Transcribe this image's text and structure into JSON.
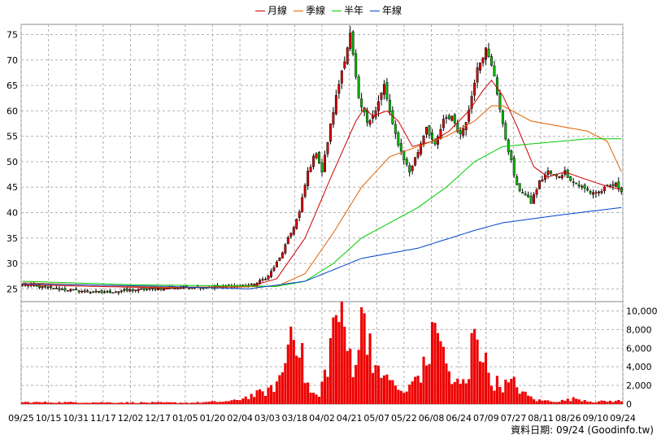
{
  "legend": [
    {
      "label": "月線",
      "color": "#cc0000"
    },
    {
      "label": "季線",
      "color": "#e06000"
    },
    {
      "label": "半年",
      "color": "#00cc00"
    },
    {
      "label": "年線",
      "color": "#0044cc"
    }
  ],
  "source_text": "資料日期: 09/24 (Goodinfo.tw)",
  "chart_data": {
    "type": "candlestick",
    "price_axis": {
      "ticks": [
        25,
        30,
        35,
        40,
        45,
        50,
        55,
        60,
        65,
        70,
        75
      ],
      "ylim": [
        22.5,
        77
      ]
    },
    "volume_axis": {
      "ticks": [
        0,
        2000,
        4000,
        6000,
        8000,
        10000
      ],
      "tick_labels": [
        "0",
        "2,000",
        "4,000",
        "6,000",
        "8,000",
        "10,000"
      ],
      "ylim": [
        0,
        11000
      ]
    },
    "x_tick_labels": [
      "09/25",
      "10/15",
      "10/31",
      "11/17",
      "12/02",
      "12/17",
      "01/05",
      "01/20",
      "02/04",
      "03/03",
      "03/18",
      "04/02",
      "04/21",
      "05/07",
      "05/22",
      "06/08",
      "06/24",
      "07/09",
      "07/27",
      "08/11",
      "08/26",
      "09/10",
      "09/24"
    ],
    "price_keypoints": [
      [
        0,
        25.8
      ],
      [
        9,
        25.2
      ],
      [
        22,
        24.5
      ],
      [
        28,
        24.3
      ],
      [
        45,
        25.0
      ],
      [
        58,
        25.3
      ],
      [
        72,
        25.5
      ],
      [
        82,
        25.8
      ],
      [
        87,
        27.5
      ],
      [
        91,
        31
      ],
      [
        95,
        36
      ],
      [
        98,
        40
      ],
      [
        101,
        48
      ],
      [
        104,
        52
      ],
      [
        106,
        48
      ],
      [
        110,
        60
      ],
      [
        113,
        68
      ],
      [
        116,
        75
      ],
      [
        119,
        62
      ],
      [
        122,
        58
      ],
      [
        125,
        60
      ],
      [
        128,
        65
      ],
      [
        131,
        57
      ],
      [
        134,
        52
      ],
      [
        137,
        48
      ],
      [
        140,
        52
      ],
      [
        143,
        57
      ],
      [
        146,
        53
      ],
      [
        149,
        58
      ],
      [
        152,
        59
      ],
      [
        155,
        55
      ],
      [
        158,
        60
      ],
      [
        161,
        69
      ],
      [
        164,
        72
      ],
      [
        167,
        67
      ],
      [
        170,
        57
      ],
      [
        173,
        50
      ],
      [
        175,
        45
      ],
      [
        177,
        44
      ],
      [
        180,
        42
      ],
      [
        183,
        46
      ],
      [
        186,
        48
      ],
      [
        189,
        47
      ],
      [
        192,
        48
      ],
      [
        195,
        46
      ],
      [
        198,
        45
      ],
      [
        201,
        44
      ],
      [
        204,
        44
      ],
      [
        207,
        45
      ],
      [
        210,
        45.5
      ],
      [
        212,
        44.5
      ]
    ],
    "moving_averages": {
      "月線": [
        [
          0,
          25.8
        ],
        [
          50,
          25.2
        ],
        [
          80,
          25.4
        ],
        [
          90,
          27
        ],
        [
          100,
          35
        ],
        [
          110,
          48
        ],
        [
          118,
          58
        ],
        [
          121,
          60.5
        ],
        [
          124,
          59
        ],
        [
          129,
          60
        ],
        [
          133,
          58
        ],
        [
          138,
          53
        ],
        [
          145,
          54
        ],
        [
          151,
          56
        ],
        [
          158,
          60
        ],
        [
          163,
          64
        ],
        [
          166,
          66
        ],
        [
          170,
          63
        ],
        [
          175,
          57
        ],
        [
          181,
          49
        ],
        [
          186,
          47
        ],
        [
          192,
          48
        ],
        [
          197,
          47
        ],
        [
          205,
          45.5
        ],
        [
          212,
          44.5
        ]
      ],
      "季線": [
        [
          0,
          26.2
        ],
        [
          50,
          25.3
        ],
        [
          90,
          25.5
        ],
        [
          100,
          28
        ],
        [
          110,
          36
        ],
        [
          120,
          45
        ],
        [
          130,
          51
        ],
        [
          140,
          53
        ],
        [
          150,
          55
        ],
        [
          160,
          58
        ],
        [
          166,
          61
        ],
        [
          170,
          61
        ],
        [
          180,
          58
        ],
        [
          190,
          57
        ],
        [
          200,
          56
        ],
        [
          207,
          54
        ],
        [
          212,
          48
        ]
      ],
      "半年": [
        [
          0,
          26.5
        ],
        [
          40,
          25.8
        ],
        [
          90,
          25.5
        ],
        [
          100,
          26.5
        ],
        [
          110,
          30
        ],
        [
          120,
          35
        ],
        [
          130,
          38
        ],
        [
          140,
          41
        ],
        [
          150,
          45
        ],
        [
          160,
          50
        ],
        [
          170,
          53
        ],
        [
          180,
          53.5
        ],
        [
          190,
          54
        ],
        [
          200,
          54.5
        ],
        [
          212,
          54.5
        ]
      ],
      "年線": [
        [
          0,
          26
        ],
        [
          50,
          25.5
        ],
        [
          80,
          25.0
        ],
        [
          100,
          26.5
        ],
        [
          120,
          31
        ],
        [
          140,
          33
        ],
        [
          160,
          36.5
        ],
        [
          170,
          38
        ],
        [
          190,
          39.5
        ],
        [
          212,
          41
        ]
      ]
    },
    "volume_keypoints": [
      [
        0,
        200
      ],
      [
        60,
        150
      ],
      [
        74,
        300
      ],
      [
        88,
        1500
      ],
      [
        92,
        3200
      ],
      [
        96,
        10000
      ],
      [
        98,
        6500
      ],
      [
        100,
        3000
      ],
      [
        102,
        1200
      ],
      [
        105,
        800
      ],
      [
        108,
        4500
      ],
      [
        111,
        10000
      ],
      [
        113,
        9000
      ],
      [
        115,
        6000
      ],
      [
        117,
        4500
      ],
      [
        119,
        6500
      ],
      [
        121,
        10000
      ],
      [
        123,
        7000
      ],
      [
        125,
        4000
      ],
      [
        127,
        2200
      ],
      [
        129,
        4000
      ],
      [
        131,
        2000
      ],
      [
        133,
        1500
      ],
      [
        136,
        1200
      ],
      [
        139,
        2800
      ],
      [
        142,
        3800
      ],
      [
        145,
        6500
      ],
      [
        147,
        10000
      ],
      [
        149,
        5000
      ],
      [
        152,
        2500
      ],
      [
        155,
        2000
      ],
      [
        158,
        2500
      ],
      [
        160,
        10000
      ],
      [
        163,
        5000
      ],
      [
        166,
        2500
      ],
      [
        170,
        2000
      ],
      [
        174,
        2200
      ],
      [
        178,
        1000
      ],
      [
        182,
        400
      ],
      [
        190,
        300
      ],
      [
        196,
        600
      ],
      [
        202,
        250
      ],
      [
        212,
        350
      ]
    ]
  }
}
